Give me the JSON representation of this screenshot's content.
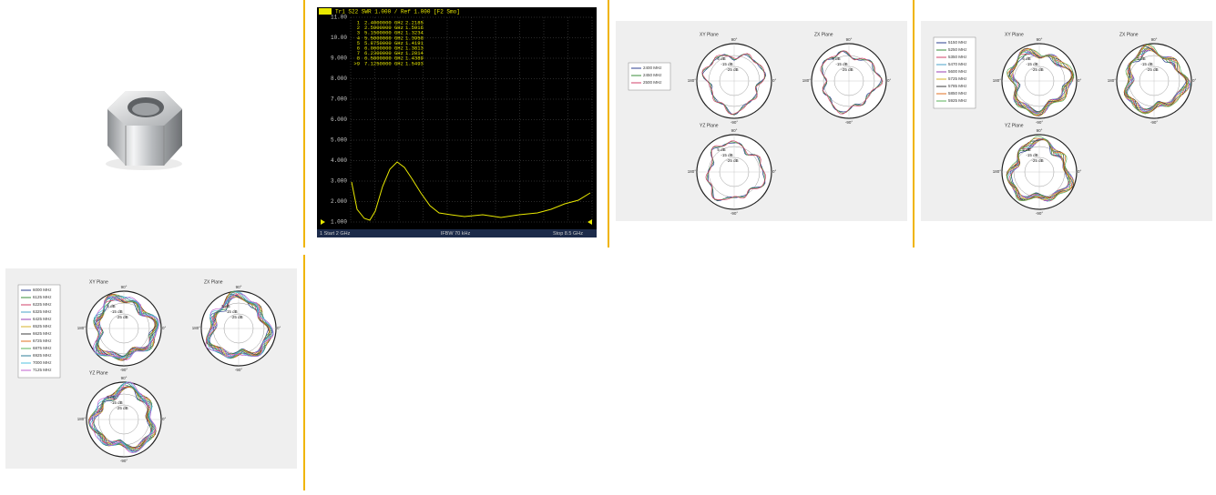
{
  "vna": {
    "header": "Tr1 S22 SWR 1.000 / Ref 1.000 [F2 Smo]",
    "yaxis": [
      "11.00",
      "10.00",
      "9.000",
      "8.000",
      "7.000",
      "6.000",
      "5.000",
      "4.000",
      "3.000",
      "2.000",
      "1.000"
    ],
    "markers": [
      {
        "id": "1",
        "freq": "2.4000000 GHz",
        "value": "2.2185"
      },
      {
        "id": "2",
        "freq": "2.5900000 GHz",
        "value": "1.5916"
      },
      {
        "id": "3",
        "freq": "5.1500000 GHz",
        "value": "1.3234"
      },
      {
        "id": "4",
        "freq": "5.5000000 GHz",
        "value": "1.3950"
      },
      {
        "id": "5",
        "freq": "5.8750000 GHz",
        "value": "1.4191"
      },
      {
        "id": "6",
        "freq": "6.0000000 GHz",
        "value": "1.3813"
      },
      {
        "id": "7",
        "freq": "6.2300000 GHz",
        "value": "1.2814"
      },
      {
        "id": "8",
        "freq": "6.5800000 GHz",
        "value": "1.4389"
      },
      {
        "id": ">9",
        "freq": "7.1250000 GHz",
        "value": "1.5493"
      }
    ],
    "footer": {
      "start": "1 Start 2 GHz",
      "ifbw": "IFBW 70 kHz",
      "stop": "Stop 8.5 GHz"
    }
  },
  "polar": {
    "planes": [
      "XY Plane",
      "ZX Plane",
      "YZ Plane"
    ],
    "top": "90°",
    "bottom": "-90°",
    "left": "180°",
    "right": "0°",
    "rings": [
      "5 dB",
      "-15 dB",
      "-25 dB"
    ]
  },
  "patterns": [
    {
      "legend": [
        "2400 MHz",
        "2450 MHz",
        "2500 MHz"
      ]
    },
    {
      "legend": [
        "5150 MHz",
        "5250 MHz",
        "5350 MHz",
        "5470 MHz",
        "5600 MHz",
        "5725 MHz",
        "5785 MHz",
        "5850 MHz",
        "5925 MHz"
      ]
    },
    {
      "legend": [
        "6000 MHz",
        "6125 MHz",
        "6225 MHz",
        "6325 MHz",
        "6425 MHz",
        "6525 MHz",
        "6625 MHz",
        "6725 MHz",
        "6875 MHz",
        "6925 MHz",
        "7000 MHz",
        "7125 MHz"
      ]
    }
  ]
}
